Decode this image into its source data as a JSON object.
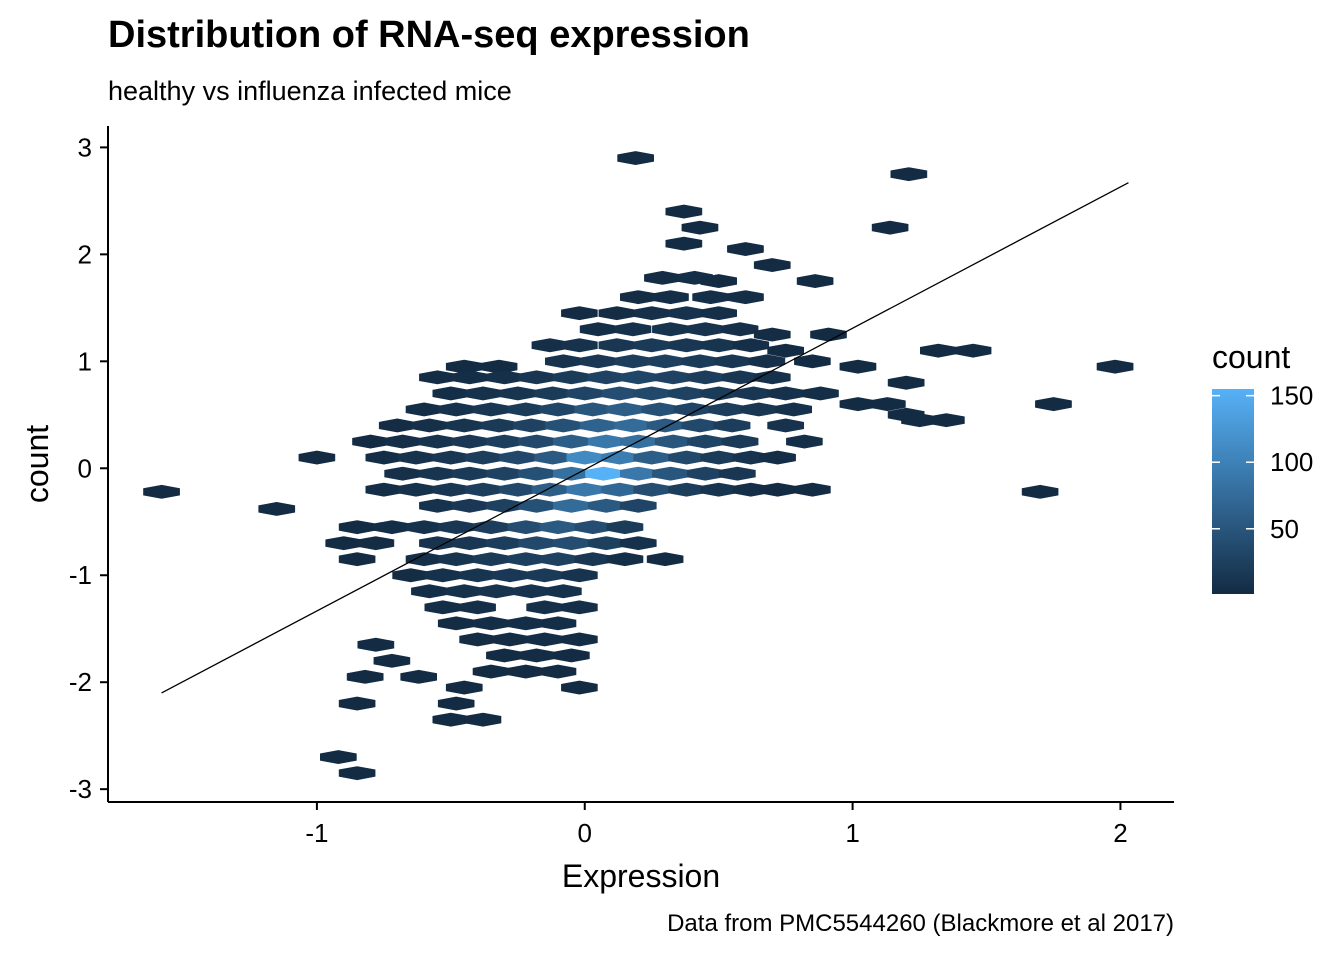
{
  "chart_data": {
    "type": "hexbin",
    "title": "Distribution of RNA-seq expression",
    "subtitle": "healthy vs influenza infected mice",
    "caption": "Data from PMC5544260 (Blackmore et al 2017)",
    "xlabel": "Expression",
    "ylabel": "count",
    "xlim": [
      -1.78,
      2.2
    ],
    "ylim": [
      -3.12,
      3.2
    ],
    "x_ticks": [
      -1,
      0,
      1,
      2
    ],
    "y_ticks": [
      -3,
      -2,
      -1,
      0,
      1,
      2,
      3
    ],
    "x_tick_labels": [
      "-1",
      "0",
      "1",
      "2"
    ],
    "y_tick_labels": [
      "-3",
      "-2",
      "-1",
      "0",
      "1",
      "2",
      "3"
    ],
    "grid": false,
    "legend": {
      "title": "count",
      "position": "right",
      "range": [
        1,
        155
      ],
      "ticks": [
        50,
        100,
        150
      ],
      "tick_labels": [
        "50",
        "100",
        "150"
      ],
      "low_color": "#132B43",
      "high_color": "#56B1F7"
    },
    "trend_line": {
      "x": [
        -1.58,
        2.03
      ],
      "y": [
        -2.1,
        2.67
      ]
    },
    "hex_size": [
      0.0673,
      0.1003
    ],
    "hexes": [
      [
        0.19,
        2.9,
        1
      ],
      [
        1.21,
        2.75,
        1
      ],
      [
        0.37,
        2.4,
        2
      ],
      [
        0.43,
        2.25,
        1
      ],
      [
        1.14,
        2.25,
        1
      ],
      [
        0.37,
        2.1,
        1
      ],
      [
        0.6,
        2.05,
        2
      ],
      [
        0.7,
        1.9,
        1
      ],
      [
        0.29,
        1.78,
        3
      ],
      [
        0.41,
        1.78,
        4
      ],
      [
        0.5,
        1.75,
        2
      ],
      [
        0.86,
        1.75,
        1
      ],
      [
        0.2,
        1.6,
        3
      ],
      [
        0.32,
        1.6,
        5
      ],
      [
        0.47,
        1.6,
        6
      ],
      [
        0.6,
        1.6,
        4
      ],
      [
        -0.02,
        1.45,
        2
      ],
      [
        0.12,
        1.45,
        3
      ],
      [
        0.25,
        1.45,
        7
      ],
      [
        0.38,
        1.45,
        9
      ],
      [
        0.5,
        1.45,
        6
      ],
      [
        0.05,
        1.3,
        5
      ],
      [
        0.18,
        1.3,
        8
      ],
      [
        0.32,
        1.3,
        11
      ],
      [
        0.45,
        1.3,
        10
      ],
      [
        0.58,
        1.3,
        7
      ],
      [
        0.7,
        1.25,
        3
      ],
      [
        0.91,
        1.25,
        2
      ],
      [
        -0.13,
        1.15,
        6
      ],
      [
        -0.02,
        1.15,
        9
      ],
      [
        0.12,
        1.15,
        14
      ],
      [
        0.25,
        1.15,
        18
      ],
      [
        0.38,
        1.15,
        15
      ],
      [
        0.5,
        1.15,
        12
      ],
      [
        0.62,
        1.15,
        6
      ],
      [
        0.75,
        1.1,
        2
      ],
      [
        1.32,
        1.1,
        1
      ],
      [
        1.45,
        1.1,
        1
      ],
      [
        -0.45,
        0.95,
        2
      ],
      [
        -0.32,
        0.95,
        2
      ],
      [
        -0.08,
        1.0,
        10
      ],
      [
        0.05,
        1.0,
        16
      ],
      [
        0.18,
        1.0,
        22
      ],
      [
        0.3,
        1.0,
        25
      ],
      [
        0.43,
        1.0,
        20
      ],
      [
        0.55,
        1.0,
        14
      ],
      [
        0.68,
        1.0,
        7
      ],
      [
        0.85,
        1.0,
        2
      ],
      [
        1.02,
        0.95,
        1
      ],
      [
        1.98,
        0.95,
        1
      ],
      [
        -0.55,
        0.85,
        3
      ],
      [
        -0.43,
        0.85,
        5
      ],
      [
        -0.3,
        0.85,
        7
      ],
      [
        -0.18,
        0.85,
        13
      ],
      [
        -0.05,
        0.85,
        20
      ],
      [
        0.08,
        0.85,
        28
      ],
      [
        0.2,
        0.85,
        32
      ],
      [
        0.33,
        0.85,
        28
      ],
      [
        0.45,
        0.85,
        22
      ],
      [
        0.58,
        0.85,
        15
      ],
      [
        0.7,
        0.85,
        8
      ],
      [
        1.2,
        0.8,
        2
      ],
      [
        -0.5,
        0.7,
        5
      ],
      [
        -0.38,
        0.7,
        8
      ],
      [
        -0.25,
        0.7,
        12
      ],
      [
        -0.12,
        0.7,
        20
      ],
      [
        0.0,
        0.7,
        30
      ],
      [
        0.13,
        0.7,
        40
      ],
      [
        0.25,
        0.7,
        35
      ],
      [
        0.38,
        0.7,
        28
      ],
      [
        0.5,
        0.7,
        20
      ],
      [
        0.63,
        0.7,
        14
      ],
      [
        0.75,
        0.7,
        8
      ],
      [
        0.88,
        0.7,
        4
      ],
      [
        1.02,
        0.6,
        2
      ],
      [
        1.13,
        0.6,
        2
      ],
      [
        1.75,
        0.6,
        1
      ],
      [
        -0.6,
        0.55,
        5
      ],
      [
        -0.48,
        0.55,
        9
      ],
      [
        -0.35,
        0.55,
        14
      ],
      [
        -0.22,
        0.55,
        20
      ],
      [
        -0.1,
        0.55,
        32
      ],
      [
        0.03,
        0.55,
        50
      ],
      [
        0.15,
        0.55,
        60
      ],
      [
        0.28,
        0.55,
        45
      ],
      [
        0.4,
        0.55,
        30
      ],
      [
        0.53,
        0.55,
        22
      ],
      [
        0.65,
        0.55,
        14
      ],
      [
        0.78,
        0.55,
        8
      ],
      [
        1.2,
        0.5,
        2
      ],
      [
        -0.7,
        0.4,
        3
      ],
      [
        -0.58,
        0.4,
        7
      ],
      [
        -0.45,
        0.4,
        12
      ],
      [
        -0.32,
        0.4,
        18
      ],
      [
        -0.2,
        0.4,
        28
      ],
      [
        -0.08,
        0.4,
        45
      ],
      [
        0.05,
        0.4,
        65
      ],
      [
        0.18,
        0.4,
        75
      ],
      [
        0.3,
        0.4,
        55
      ],
      [
        0.43,
        0.4,
        35
      ],
      [
        0.55,
        0.4,
        22
      ],
      [
        0.75,
        0.4,
        9
      ],
      [
        1.25,
        0.45,
        2
      ],
      [
        1.35,
        0.45,
        1
      ],
      [
        -0.8,
        0.25,
        2
      ],
      [
        -0.68,
        0.25,
        6
      ],
      [
        -0.55,
        0.25,
        11
      ],
      [
        -0.43,
        0.25,
        16
      ],
      [
        -0.3,
        0.25,
        24
      ],
      [
        -0.18,
        0.25,
        36
      ],
      [
        -0.05,
        0.25,
        60
      ],
      [
        0.08,
        0.25,
        90
      ],
      [
        0.2,
        0.25,
        80
      ],
      [
        0.33,
        0.25,
        50
      ],
      [
        0.45,
        0.25,
        30
      ],
      [
        0.58,
        0.25,
        18
      ],
      [
        0.82,
        0.25,
        6
      ],
      [
        -1.0,
        0.1,
        1
      ],
      [
        -0.75,
        0.1,
        4
      ],
      [
        -0.63,
        0.1,
        9
      ],
      [
        -0.5,
        0.1,
        14
      ],
      [
        -0.38,
        0.1,
        22
      ],
      [
        -0.25,
        0.1,
        34
      ],
      [
        -0.12,
        0.1,
        55
      ],
      [
        0.0,
        0.1,
        110
      ],
      [
        0.13,
        0.1,
        95
      ],
      [
        0.25,
        0.1,
        60
      ],
      [
        0.38,
        0.1,
        35
      ],
      [
        0.5,
        0.1,
        20
      ],
      [
        0.62,
        0.1,
        10
      ],
      [
        0.72,
        0.1,
        5
      ],
      [
        -0.68,
        -0.05,
        7
      ],
      [
        -0.55,
        -0.05,
        12
      ],
      [
        -0.43,
        -0.05,
        18
      ],
      [
        -0.3,
        -0.05,
        28
      ],
      [
        -0.18,
        -0.05,
        45
      ],
      [
        -0.05,
        -0.05,
        80
      ],
      [
        0.07,
        -0.05,
        155
      ],
      [
        0.2,
        -0.05,
        90
      ],
      [
        0.32,
        -0.05,
        50
      ],
      [
        0.45,
        -0.05,
        28
      ],
      [
        0.57,
        -0.05,
        14
      ],
      [
        -0.75,
        -0.2,
        4
      ],
      [
        -0.63,
        -0.2,
        8
      ],
      [
        -0.5,
        -0.2,
        14
      ],
      [
        -0.38,
        -0.2,
        22
      ],
      [
        -0.25,
        -0.2,
        35
      ],
      [
        -0.13,
        -0.2,
        60
      ],
      [
        0.0,
        -0.2,
        90
      ],
      [
        0.13,
        -0.2,
        70
      ],
      [
        0.25,
        -0.2,
        40
      ],
      [
        0.38,
        -0.2,
        22
      ],
      [
        0.5,
        -0.2,
        12
      ],
      [
        0.62,
        -0.2,
        6
      ],
      [
        0.72,
        -0.2,
        2
      ],
      [
        0.85,
        -0.2,
        1
      ],
      [
        1.7,
        -0.22,
        1
      ],
      [
        -1.58,
        -0.22,
        1
      ],
      [
        -0.55,
        -0.35,
        9
      ],
      [
        -0.43,
        -0.35,
        16
      ],
      [
        -0.3,
        -0.35,
        26
      ],
      [
        -0.18,
        -0.35,
        45
      ],
      [
        -0.05,
        -0.35,
        75
      ],
      [
        0.08,
        -0.35,
        55
      ],
      [
        0.2,
        -0.35,
        30
      ],
      [
        -1.15,
        -0.38,
        1
      ],
      [
        -0.85,
        -0.55,
        2
      ],
      [
        -0.72,
        -0.55,
        4
      ],
      [
        -0.6,
        -0.55,
        8
      ],
      [
        -0.48,
        -0.55,
        14
      ],
      [
        -0.35,
        -0.55,
        22
      ],
      [
        -0.22,
        -0.55,
        40
      ],
      [
        -0.1,
        -0.55,
        55
      ],
      [
        0.03,
        -0.55,
        40
      ],
      [
        0.15,
        -0.55,
        20
      ],
      [
        -0.9,
        -0.7,
        2
      ],
      [
        -0.78,
        -0.7,
        3
      ],
      [
        -0.55,
        -0.7,
        10
      ],
      [
        -0.43,
        -0.7,
        14
      ],
      [
        -0.3,
        -0.7,
        22
      ],
      [
        -0.18,
        -0.7,
        35
      ],
      [
        -0.05,
        -0.7,
        40
      ],
      [
        0.08,
        -0.7,
        25
      ],
      [
        0.2,
        -0.7,
        8
      ],
      [
        -0.85,
        -0.85,
        2
      ],
      [
        -0.6,
        -0.85,
        6
      ],
      [
        -0.48,
        -0.85,
        12
      ],
      [
        -0.35,
        -0.85,
        18
      ],
      [
        -0.22,
        -0.85,
        24
      ],
      [
        -0.1,
        -0.85,
        26
      ],
      [
        0.03,
        -0.85,
        14
      ],
      [
        0.15,
        -0.85,
        5
      ],
      [
        0.3,
        -0.85,
        2
      ],
      [
        -0.65,
        -1.0,
        3
      ],
      [
        -0.53,
        -1.0,
        8
      ],
      [
        -0.4,
        -1.0,
        12
      ],
      [
        -0.28,
        -1.0,
        16
      ],
      [
        -0.15,
        -1.0,
        18
      ],
      [
        -0.02,
        -1.0,
        10
      ],
      [
        -0.58,
        -1.15,
        5
      ],
      [
        -0.45,
        -1.15,
        8
      ],
      [
        -0.33,
        -1.15,
        10
      ],
      [
        -0.2,
        -1.15,
        10
      ],
      [
        -0.08,
        -1.15,
        8
      ],
      [
        -0.53,
        -1.3,
        4
      ],
      [
        -0.4,
        -1.3,
        6
      ],
      [
        -0.15,
        -1.3,
        7
      ],
      [
        -0.02,
        -1.3,
        6
      ],
      [
        -0.48,
        -1.45,
        3
      ],
      [
        -0.35,
        -1.45,
        4
      ],
      [
        -0.22,
        -1.45,
        5
      ],
      [
        -0.1,
        -1.45,
        5
      ],
      [
        -0.4,
        -1.6,
        3
      ],
      [
        -0.28,
        -1.6,
        3
      ],
      [
        -0.15,
        -1.6,
        4
      ],
      [
        -0.02,
        -1.6,
        3
      ],
      [
        -0.3,
        -1.75,
        2
      ],
      [
        -0.18,
        -1.75,
        3
      ],
      [
        -0.05,
        -1.75,
        2
      ],
      [
        -0.78,
        -1.65,
        1
      ],
      [
        -0.72,
        -1.8,
        1
      ],
      [
        -0.62,
        -1.95,
        1
      ],
      [
        -0.35,
        -1.9,
        2
      ],
      [
        -0.22,
        -1.9,
        2
      ],
      [
        -0.1,
        -1.9,
        2
      ],
      [
        -0.82,
        -1.95,
        1
      ],
      [
        -0.02,
        -2.05,
        1
      ],
      [
        -0.45,
        -2.05,
        1
      ],
      [
        -0.85,
        -2.2,
        1
      ],
      [
        -0.5,
        -2.35,
        1
      ],
      [
        -0.38,
        -2.35,
        1
      ],
      [
        -0.48,
        -2.2,
        1
      ],
      [
        -0.92,
        -2.7,
        1
      ],
      [
        -0.85,
        -2.85,
        1
      ]
    ]
  }
}
